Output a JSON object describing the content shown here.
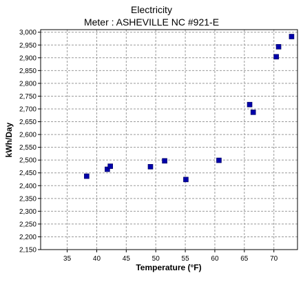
{
  "chart_data": {
    "type": "scatter",
    "title": "Electricity",
    "subtitle": "Meter : ASHEVILLE NC #921-E",
    "xlabel": "Temperature (°F)",
    "ylabel": "kWh/Day",
    "xlim": [
      30.5,
      74
    ],
    "ylim": [
      2150,
      3010
    ],
    "x_ticks": [
      35,
      40,
      45,
      50,
      55,
      60,
      65,
      70
    ],
    "y_ticks": [
      2150,
      2200,
      2250,
      2300,
      2350,
      2400,
      2450,
      2500,
      2550,
      2600,
      2650,
      2700,
      2750,
      2800,
      2850,
      2900,
      2950,
      3000
    ],
    "x_tick_labels": [
      "35",
      "40",
      "45",
      "50",
      "55",
      "60",
      "65",
      "70"
    ],
    "y_tick_labels": [
      "2,150",
      "2,200",
      "2,250",
      "2,300",
      "2,350",
      "2,400",
      "2,450",
      "2,500",
      "2,550",
      "2,600",
      "2,650",
      "2,700",
      "2,750",
      "2,800",
      "2,850",
      "2,900",
      "2,950",
      "3,000"
    ],
    "grid": true,
    "series": [
      {
        "color": "#0000aa",
        "points": [
          {
            "x": 38.3,
            "y": 2437
          },
          {
            "x": 41.8,
            "y": 2464
          },
          {
            "x": 42.3,
            "y": 2476
          },
          {
            "x": 49.1,
            "y": 2474
          },
          {
            "x": 51.5,
            "y": 2497
          },
          {
            "x": 55.1,
            "y": 2424
          },
          {
            "x": 60.7,
            "y": 2499
          },
          {
            "x": 65.9,
            "y": 2717
          },
          {
            "x": 66.5,
            "y": 2687
          },
          {
            "x": 70.4,
            "y": 2904
          },
          {
            "x": 70.8,
            "y": 2943
          },
          {
            "x": 73.0,
            "y": 2983
          }
        ]
      }
    ]
  }
}
